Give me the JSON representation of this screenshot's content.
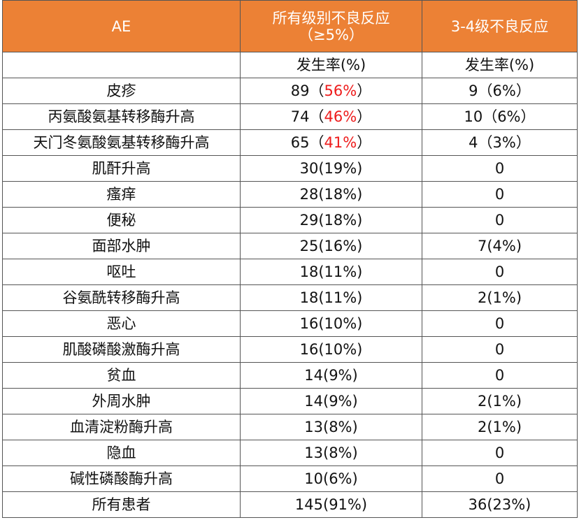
{
  "header": {
    "col_ae": "AE",
    "col_all_line1": "所有级别不良反应",
    "col_all_line2": "（≥5%）",
    "col_grade34": "3-4级不良反应"
  },
  "subheader": {
    "rate_all": "发生率(%)",
    "rate_grade34": "发生率(%)"
  },
  "colors": {
    "header_bg": "#ec8135",
    "highlight": "#ee1c1c"
  },
  "rows": [
    {
      "ae": "皮疹",
      "all": {
        "pre": "89（",
        "hl": "56%",
        "post": "）"
      },
      "g34": "9（6%）"
    },
    {
      "ae": "丙氨酸氨基转移酶升高",
      "all": {
        "pre": "74（",
        "hl": "46%",
        "post": "）"
      },
      "g34": "10（6%）"
    },
    {
      "ae": "天门冬氨酸氨基转移酶升高",
      "all": {
        "pre": "65（",
        "hl": "41%",
        "post": "）"
      },
      "g34": "4（3%）"
    },
    {
      "ae": "肌酐升高",
      "all": {
        "pre": "30(19%)",
        "hl": "",
        "post": ""
      },
      "g34": "0"
    },
    {
      "ae": "瘙痒",
      "all": {
        "pre": "28(18%)",
        "hl": "",
        "post": ""
      },
      "g34": "0"
    },
    {
      "ae": "便秘",
      "all": {
        "pre": "29(18%)",
        "hl": "",
        "post": ""
      },
      "g34": "0"
    },
    {
      "ae": "面部水肿",
      "all": {
        "pre": "25(16%)",
        "hl": "",
        "post": ""
      },
      "g34": "7(4%)"
    },
    {
      "ae": "呕吐",
      "all": {
        "pre": "18(11%)",
        "hl": "",
        "post": ""
      },
      "g34": "0"
    },
    {
      "ae": "谷氨酰转移酶升高",
      "all": {
        "pre": "18(11%)",
        "hl": "",
        "post": ""
      },
      "g34": "2(1%)"
    },
    {
      "ae": "恶心",
      "all": {
        "pre": "16(10%)",
        "hl": "",
        "post": ""
      },
      "g34": "0"
    },
    {
      "ae": "肌酸磷酸激酶升高",
      "all": {
        "pre": "16(10%)",
        "hl": "",
        "post": ""
      },
      "g34": "0"
    },
    {
      "ae": "贫血",
      "all": {
        "pre": "14(9%)",
        "hl": "",
        "post": ""
      },
      "g34": "0"
    },
    {
      "ae": "外周水肿",
      "all": {
        "pre": "14(9%)",
        "hl": "",
        "post": ""
      },
      "g34": "2(1%)"
    },
    {
      "ae": "血清淀粉酶升高",
      "all": {
        "pre": "13(8%)",
        "hl": "",
        "post": ""
      },
      "g34": "2(1%)"
    },
    {
      "ae": "隐血",
      "all": {
        "pre": "13(8%)",
        "hl": "",
        "post": ""
      },
      "g34": "0"
    },
    {
      "ae": "碱性磷酸酶升高",
      "all": {
        "pre": "10(6%)",
        "hl": "",
        "post": ""
      },
      "g34": "0"
    },
    {
      "ae": "所有患者",
      "all": {
        "pre": "145(91%)",
        "hl": "",
        "post": ""
      },
      "g34": "36(23%)"
    }
  ]
}
